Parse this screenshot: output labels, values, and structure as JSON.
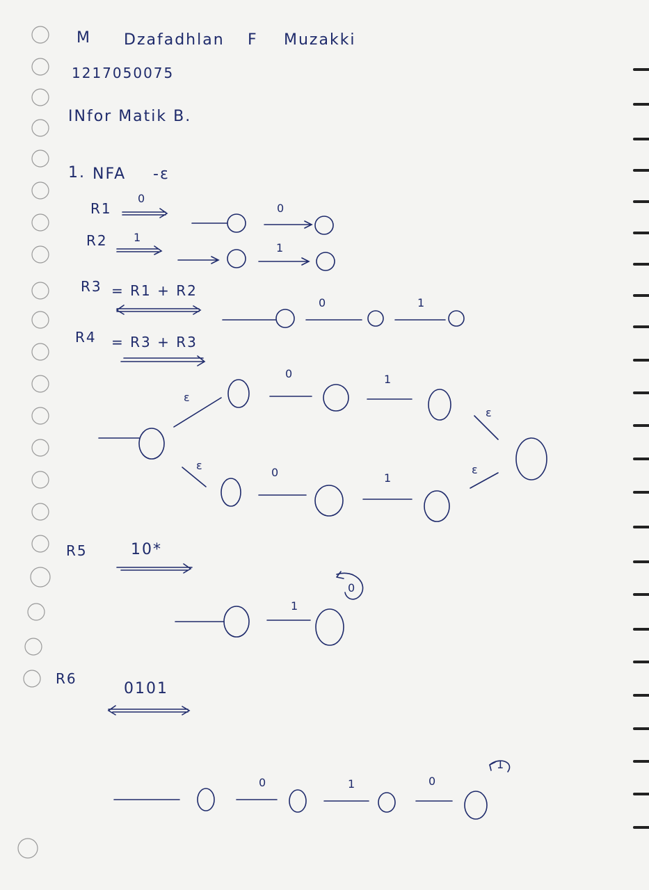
{
  "header": {
    "initial": "M",
    "name_first": "Dzafadhlan",
    "name_middle": "F",
    "name_last": "Muzakki",
    "student_id": "1217050075",
    "class": "INfor Matik B."
  },
  "question": {
    "number": "1.",
    "title": "NFA",
    "title_suffix": "-ε"
  },
  "rules": [
    {
      "name": "R1",
      "expr": "0",
      "edges": [
        "0"
      ]
    },
    {
      "name": "R2",
      "expr": "1",
      "edges": [
        "1"
      ]
    },
    {
      "name": "R3",
      "expr": "= R1 + R2",
      "edges": [
        "0",
        "1"
      ]
    },
    {
      "name": "R4",
      "expr": "= R3 + R3",
      "edges_top": [
        "ε",
        "0",
        "1",
        "ε"
      ],
      "edges_bottom": [
        "ε",
        "0",
        "1",
        "ε"
      ]
    },
    {
      "name": "R5",
      "expr": "10*",
      "edges": [
        "1"
      ],
      "loop": "0"
    },
    {
      "name": "R6",
      "expr": "0101",
      "edges": [
        "0",
        "1",
        "0"
      ],
      "loop": "1"
    }
  ],
  "colors": {
    "ink": "#1e2a6b",
    "paper": "#f4f4f2",
    "binding": "#222222"
  }
}
